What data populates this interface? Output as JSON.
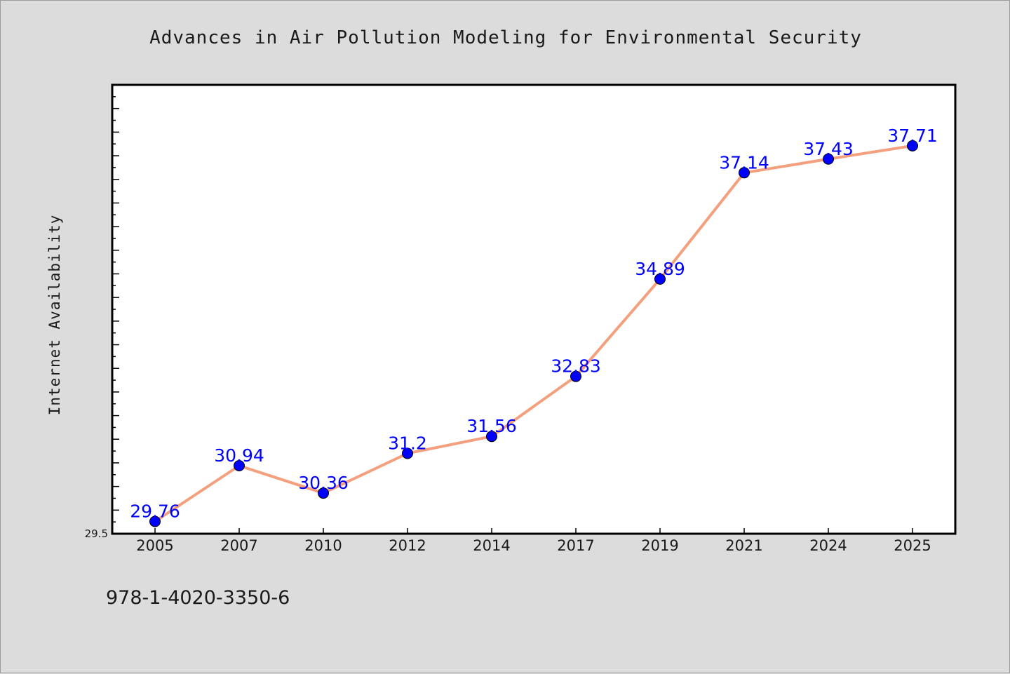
{
  "chart_data": {
    "type": "line",
    "title": "Advances in Air Pollution Modeling for Environmental Security",
    "xlabel": "",
    "ylabel": "Internet Availability",
    "categories": [
      "2005",
      "2007",
      "2010",
      "2012",
      "2014",
      "2017",
      "2019",
      "2021",
      "2024",
      "2025"
    ],
    "series": [
      {
        "values": [
          29.76,
          30.94,
          30.36,
          31.2,
          31.56,
          32.83,
          34.89,
          37.14,
          37.43,
          37.71
        ],
        "labels": [
          "29.76",
          "30.94",
          "30.36",
          "31.2",
          "31.56",
          "32.83",
          "34.89",
          "37.14",
          "37.43",
          "37.71"
        ],
        "line_color": "#f4a07f",
        "marker_color": "#0000ff"
      }
    ],
    "ylim": [
      29.5,
      39.0
    ],
    "y_tick_labels": [
      "29.5"
    ],
    "grid": false,
    "legend": "none"
  },
  "footer": {
    "note": "978-1-4020-3350-6"
  },
  "colors": {
    "background": "#dcdcdc",
    "plot_background": "#ffffff",
    "line": "#f4a07f",
    "marker": "#0000ff",
    "data_label": "#0000ff"
  }
}
